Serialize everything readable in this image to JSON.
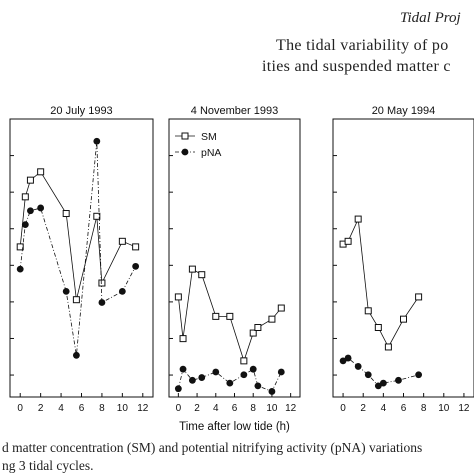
{
  "header": {
    "running_title": "Tidal Proj",
    "title_line1": "The tidal variability of po",
    "title_line2": "ities and suspended matter c"
  },
  "caption": {
    "line1": "d matter concentration (SM) and potential nitrifying activity (pNA) variations",
    "line2": "ng 3 tidal cycles."
  },
  "colors": {
    "axis": "#111111",
    "marker": "#111111"
  },
  "chart_data": [
    {
      "type": "line",
      "title": "20 July 1993",
      "xlabel": "",
      "xlim": [
        -1,
        13
      ],
      "ylim": [
        0,
        10
      ],
      "xticks": [
        "0",
        "2",
        "4",
        "6",
        "8",
        "10",
        "12"
      ],
      "legend": null,
      "series": [
        {
          "name": "SM",
          "marker": "open-square",
          "line": "solid",
          "x": [
            0,
            0.5,
            1,
            2,
            4.5,
            5.5,
            7.5,
            8,
            10,
            11.3
          ],
          "y": [
            5.4,
            7.2,
            7.8,
            8.1,
            6.6,
            3.5,
            6.5,
            4.1,
            5.6,
            5.4
          ]
        },
        {
          "name": "pNA",
          "marker": "filled-circle",
          "line": "dashed",
          "x": [
            0,
            0.5,
            1,
            2,
            4.5,
            5.5,
            7.5,
            8,
            10,
            11.3
          ],
          "y": [
            4.6,
            6.2,
            6.7,
            6.8,
            3.8,
            1.5,
            9.2,
            3.4,
            3.8,
            4.7
          ]
        }
      ]
    },
    {
      "type": "line",
      "title": "4 November 1993",
      "xlabel": "Time after low tide (h)",
      "xlim": [
        -1,
        13
      ],
      "ylim": [
        0,
        10
      ],
      "xticks": [
        "0",
        "2",
        "4",
        "6",
        "8",
        "10",
        "12"
      ],
      "legend": "top-left",
      "series": [
        {
          "name": "SM",
          "marker": "open-square",
          "line": "solid",
          "x": [
            0,
            0.5,
            1.5,
            2.5,
            4,
            5.5,
            7,
            8,
            8.5,
            10,
            11
          ],
          "y": [
            3.6,
            2.1,
            4.6,
            4.4,
            2.9,
            2.9,
            1.3,
            2.3,
            2.5,
            2.8,
            3.2
          ]
        },
        {
          "name": "pNA",
          "marker": "filled-circle",
          "line": "dashed",
          "x": [
            0,
            0.5,
            1.5,
            2.5,
            4,
            5.5,
            7,
            8,
            8.5,
            10,
            11
          ],
          "y": [
            0.3,
            1.0,
            0.6,
            0.7,
            0.9,
            0.5,
            0.8,
            1.0,
            0.4,
            0.2,
            0.9
          ]
        }
      ]
    },
    {
      "type": "line",
      "title": "20 May 1994",
      "xlabel": "",
      "xlim": [
        -1,
        13
      ],
      "ylim": [
        0,
        10
      ],
      "xticks": [
        "0",
        "2",
        "4",
        "6",
        "8",
        "10",
        "12"
      ],
      "legend": null,
      "series": [
        {
          "name": "SM",
          "marker": "open-square",
          "line": "solid",
          "x": [
            0,
            0.5,
            1.5,
            2.5,
            3.5,
            4.5,
            6,
            7.5
          ],
          "y": [
            5.5,
            5.6,
            6.4,
            3.1,
            2.5,
            1.8,
            2.8,
            3.6
          ]
        },
        {
          "name": "pNA",
          "marker": "filled-circle",
          "line": "dashed",
          "x": [
            0,
            0.5,
            1.5,
            2.5,
            3.5,
            4,
            5.5,
            7.5
          ],
          "y": [
            1.3,
            1.4,
            1.1,
            0.8,
            0.4,
            0.5,
            0.6,
            0.8
          ]
        }
      ]
    }
  ]
}
